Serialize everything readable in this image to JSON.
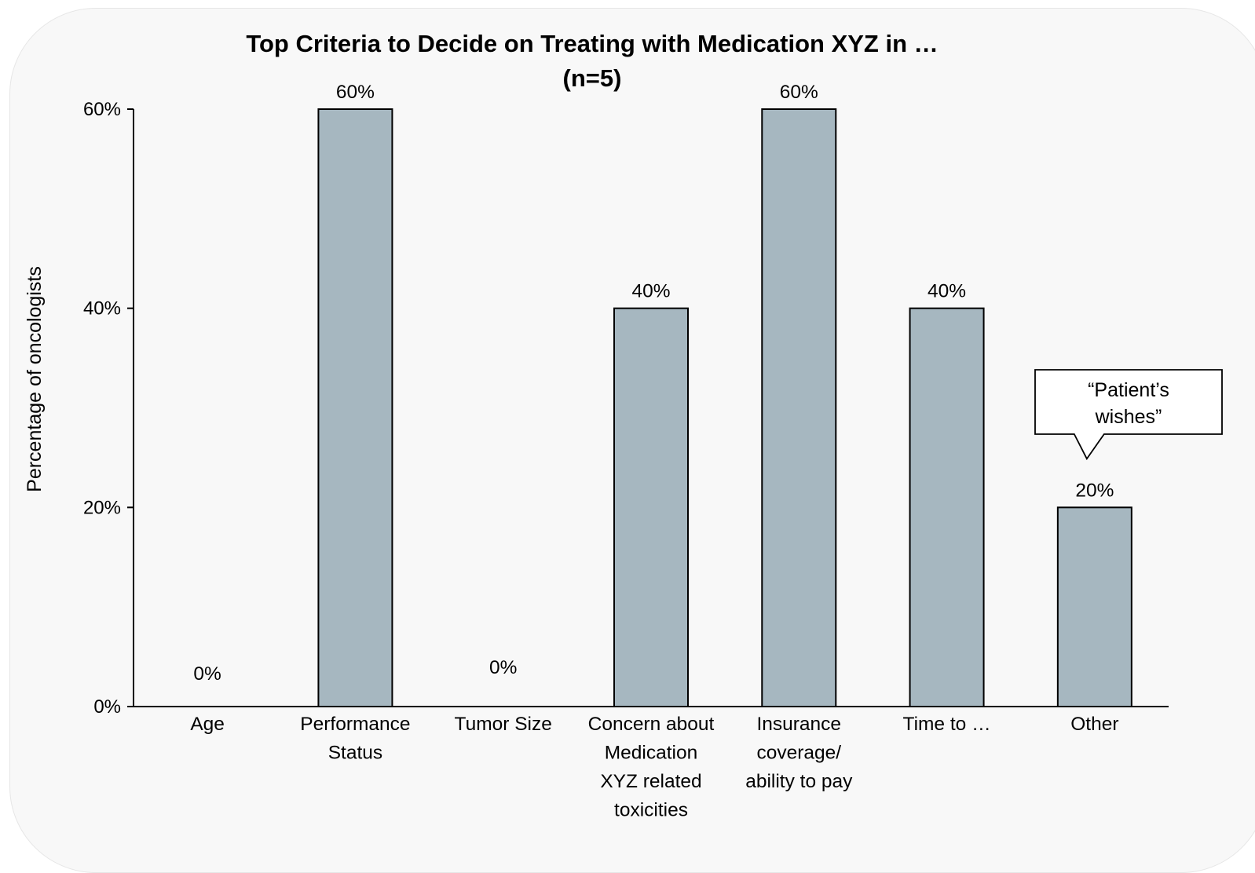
{
  "chart_data": {
    "type": "bar",
    "title": [
      "Top Criteria to Decide on Treating with Medication XYZ in …",
      "(n=5)"
    ],
    "ylabel": "Percentage of oncologists",
    "xlabel": "",
    "ylim": [
      0,
      60
    ],
    "yticks": [
      0,
      20,
      40,
      60
    ],
    "ytick_labels": [
      "0%",
      "20%",
      "40%",
      "60%"
    ],
    "categories": [
      [
        "Age"
      ],
      [
        "Performance",
        "Status"
      ],
      [
        "Tumor Size"
      ],
      [
        "Concern about",
        "Medication",
        "XYZ related",
        "toxicities"
      ],
      [
        "Insurance",
        "coverage/",
        "ability to pay"
      ],
      [
        "Time to …"
      ],
      [
        "Other"
      ]
    ],
    "values": [
      0,
      60,
      0,
      40,
      60,
      40,
      20
    ],
    "data_labels": [
      "0%",
      "60%",
      "0%",
      "40%",
      "60%",
      "40%",
      "20%"
    ],
    "bar_color": "#a6b7c0",
    "grid": false,
    "legend": "none",
    "annotations": [
      {
        "category_index": 6,
        "text": [
          "“Patient’s",
          "wishes”"
        ]
      }
    ]
  }
}
